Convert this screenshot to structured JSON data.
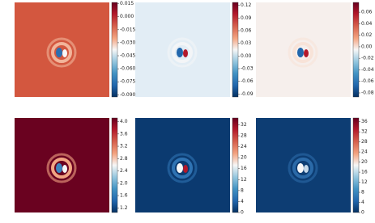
{
  "chart_data": [
    {
      "type": "heatmap",
      "colormap": "RdBu_r",
      "ylim": [
        -0.0925,
        0.0165
      ],
      "yticks": [
        0.015,
        {
          "value": 0,
          "label": "0.000"
        },
        -0.015,
        {
          "value": -0.03,
          "label": "-0.030"
        },
        -0.045,
        {
          "value": -0.06,
          "label": "-0.060"
        },
        -0.075,
        {
          "value": -0.09,
          "label": "-0.090"
        }
      ]
    },
    {
      "type": "heatmap",
      "colormap": "RdBu_r",
      "ylim": [
        -0.097,
        0.127
      ],
      "yticks": [
        0.12,
        0.09,
        0.06,
        0.03,
        {
          "value": 0,
          "label": "0.00"
        },
        -0.03,
        -0.06,
        -0.09
      ]
    },
    {
      "type": "heatmap",
      "colormap": "RdBu_r",
      "ylim": [
        -0.087,
        0.077
      ],
      "yticks": [
        0.06,
        0.04,
        0.02,
        {
          "value": 0,
          "label": "0.00"
        },
        -0.02,
        -0.04,
        -0.06,
        -0.08
      ]
    },
    {
      "type": "heatmap",
      "colormap": "RdBu_r",
      "ylim": [
        1.05,
        4.12
      ],
      "yticks": [
        {
          "value": 4,
          "label": "4.0"
        },
        3.6,
        3.2,
        2.8,
        2.4,
        {
          "value": 2,
          "label": "2.0"
        },
        1.6,
        1.2
      ]
    },
    {
      "type": "heatmap",
      "colormap": "RdBu_r",
      "ylim": [
        0,
        34.5
      ],
      "yticks": [
        32,
        28,
        24,
        20,
        16,
        12,
        8,
        4,
        0
      ]
    },
    {
      "type": "heatmap",
      "colormap": "RdBu_r",
      "ylim": [
        0,
        37.5
      ],
      "yticks": [
        36,
        32,
        28,
        24,
        20,
        16,
        12,
        8,
        4,
        0
      ]
    }
  ]
}
